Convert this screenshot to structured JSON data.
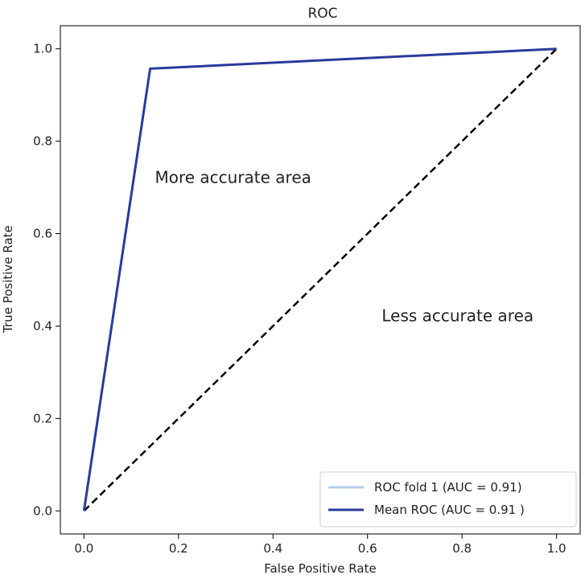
{
  "chart_data": {
    "type": "line",
    "title": "ROC",
    "xlabel": "False Positive Rate",
    "ylabel": "True Positive Rate",
    "xlim": [
      -0.05,
      1.05
    ],
    "ylim": [
      -0.05,
      1.05
    ],
    "xticks": [
      "0.0",
      "0.2",
      "0.4",
      "0.6",
      "0.8",
      "1.0"
    ],
    "yticks": [
      "0.0",
      "0.2",
      "0.4",
      "0.6",
      "0.8",
      "1.0"
    ],
    "grid": false,
    "legend_position": "lower-right",
    "series": [
      {
        "name": "ROC fold 1 (AUC = 0.91)",
        "color": "#b3cde8",
        "style": "solid",
        "x": [
          0.0,
          0.14,
          1.0
        ],
        "y": [
          0.0,
          0.957,
          1.0
        ]
      },
      {
        "name": "Mean ROC (AUC = 0.91 )",
        "color": "#2a3a9c",
        "style": "solid",
        "x": [
          0.0,
          0.14,
          1.0
        ],
        "y": [
          0.0,
          0.957,
          1.0
        ]
      }
    ],
    "chance_line": {
      "color": "#000000",
      "style": "dashed",
      "x": [
        0.0,
        1.0
      ],
      "y": [
        0.0,
        1.0
      ]
    },
    "annotations": [
      {
        "text": "More accurate area",
        "x": 0.15,
        "y": 0.71
      },
      {
        "text": "Less accurate area",
        "x": 0.63,
        "y": 0.41
      }
    ]
  }
}
